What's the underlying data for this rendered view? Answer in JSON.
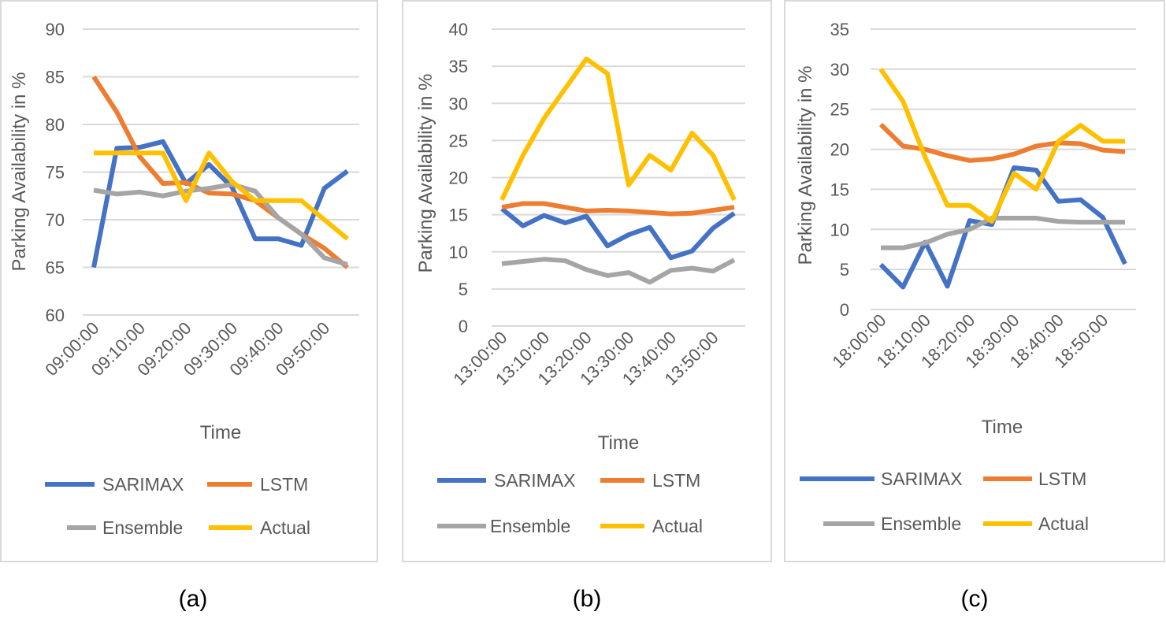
{
  "colors": {
    "SARIMAX": "#4472C4",
    "LSTM": "#ED7D31",
    "Ensemble": "#A5A5A5",
    "Actual": "#FFC000"
  },
  "chart_data": [
    {
      "type": "line",
      "caption": "(a)",
      "xlabel": "Time",
      "ylabel": "Parking Availability in %",
      "ylim": [
        60,
        90
      ],
      "ytick_step": 5,
      "grid": true,
      "legend": "bottom",
      "x_labels": [
        "09:00:00",
        "09:10:00",
        "09:20:00",
        "09:30:00",
        "09:40:00",
        "09:50:00"
      ],
      "label_interval": 2,
      "series": [
        {
          "name": "SARIMAX",
          "values": [
            65,
            77.5,
            77.6,
            78.2,
            73.8,
            75.8,
            73.4,
            68,
            68,
            67.3,
            73.3,
            75.1
          ]
        },
        {
          "name": "LSTM",
          "values": [
            85,
            81.3,
            76.6,
            73.8,
            73.9,
            72.8,
            72.7,
            72,
            70.2,
            68.5,
            67,
            65
          ]
        },
        {
          "name": "Ensemble",
          "values": [
            73.1,
            72.7,
            72.9,
            72.5,
            73,
            73.3,
            73.7,
            73,
            70.2,
            68.5,
            66,
            65.3
          ]
        },
        {
          "name": "Actual",
          "values": [
            77,
            77,
            77,
            77,
            72,
            77,
            74,
            72,
            72,
            72,
            70,
            68
          ]
        }
      ]
    },
    {
      "type": "line",
      "caption": "(b)",
      "xlabel": "Time",
      "ylabel": "Parking Availability in %",
      "ylim": [
        0,
        40
      ],
      "ytick_step": 5,
      "grid": true,
      "legend": "bottom",
      "x_labels": [
        "13:00:00",
        "13:10:00",
        "13:20:00",
        "13:30:00",
        "13:40:00",
        "13:50:00"
      ],
      "label_interval": 2,
      "series": [
        {
          "name": "SARIMAX",
          "values": [
            15.8,
            13.5,
            14.9,
            13.9,
            14.8,
            10.8,
            12.3,
            13.3,
            9.2,
            10.1,
            13.2,
            15.2
          ]
        },
        {
          "name": "LSTM",
          "values": [
            16,
            16.5,
            16.5,
            16,
            15.5,
            15.6,
            15.5,
            15.3,
            15.1,
            15.2,
            15.6,
            16
          ]
        },
        {
          "name": "Ensemble",
          "values": [
            8.4,
            8.7,
            9,
            8.8,
            7.6,
            6.8,
            7.2,
            5.9,
            7.5,
            7.8,
            7.4,
            8.9
          ]
        },
        {
          "name": "Actual",
          "values": [
            17,
            23,
            28,
            32,
            36,
            34,
            19,
            23,
            21,
            26,
            23,
            17
          ]
        }
      ]
    },
    {
      "type": "line",
      "caption": "(c)",
      "xlabel": "Time",
      "ylabel": "Parking Availability in %",
      "ylim": [
        0,
        35
      ],
      "ytick_step": 5,
      "grid": true,
      "legend": "bottom",
      "x_labels": [
        "18:00:00",
        "18:10:00",
        "18:20:00",
        "18:30:00",
        "18:40:00",
        "18:50:00"
      ],
      "label_interval": 2,
      "series": [
        {
          "name": "SARIMAX",
          "values": [
            5.6,
            2.8,
            8.4,
            2.9,
            11.1,
            10.6,
            17.7,
            17.4,
            13.5,
            13.7,
            11.5,
            5.7
          ]
        },
        {
          "name": "LSTM",
          "values": [
            23.1,
            20.4,
            20,
            19.2,
            18.6,
            18.8,
            19.4,
            20.4,
            20.8,
            20.7,
            19.9,
            19.7
          ]
        },
        {
          "name": "Ensemble",
          "values": [
            7.7,
            7.7,
            8.3,
            9.4,
            10,
            11.4,
            11.4,
            11.4,
            11,
            10.9,
            10.9,
            10.9
          ]
        },
        {
          "name": "Actual",
          "values": [
            30,
            26,
            19,
            13,
            13,
            11,
            17,
            15,
            21,
            23,
            21,
            21
          ]
        }
      ]
    }
  ]
}
